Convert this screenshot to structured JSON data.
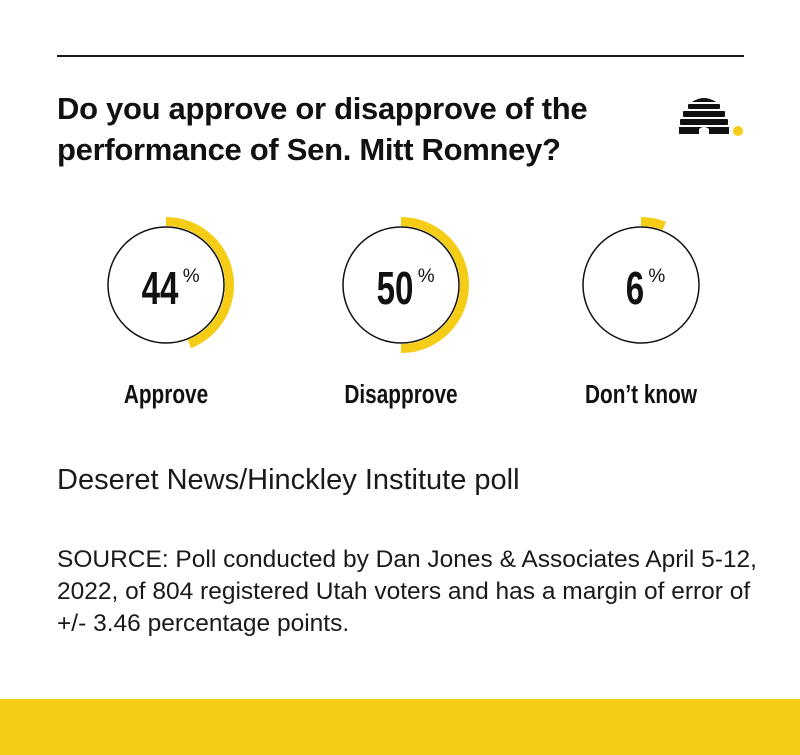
{
  "question": "Do you approve or disapprove of the performance of Sen. Mitt Romney?",
  "logo_icon": "beehive-icon",
  "colors": {
    "accent": "#f6cd16",
    "ink": "#111111",
    "background": "#ffffff"
  },
  "chart_data": {
    "type": "donut",
    "percent_symbol": "%",
    "categories": [
      "Approve",
      "Disapprove",
      "Don’t know"
    ],
    "values": [
      44,
      50,
      6
    ],
    "value_labels": [
      "44",
      "50",
      "6"
    ],
    "max": 100,
    "title": "Do you approve or disapprove of the performance of Sen. Mitt Romney?"
  },
  "subtitle": "Deseret News/Hinckley Institute poll",
  "source": "SOURCE: Poll conducted by Dan Jones & Associates April 5-12, 2022, of 804 registered Utah voters and has a margin of error of +/- 3.46 percentage points."
}
